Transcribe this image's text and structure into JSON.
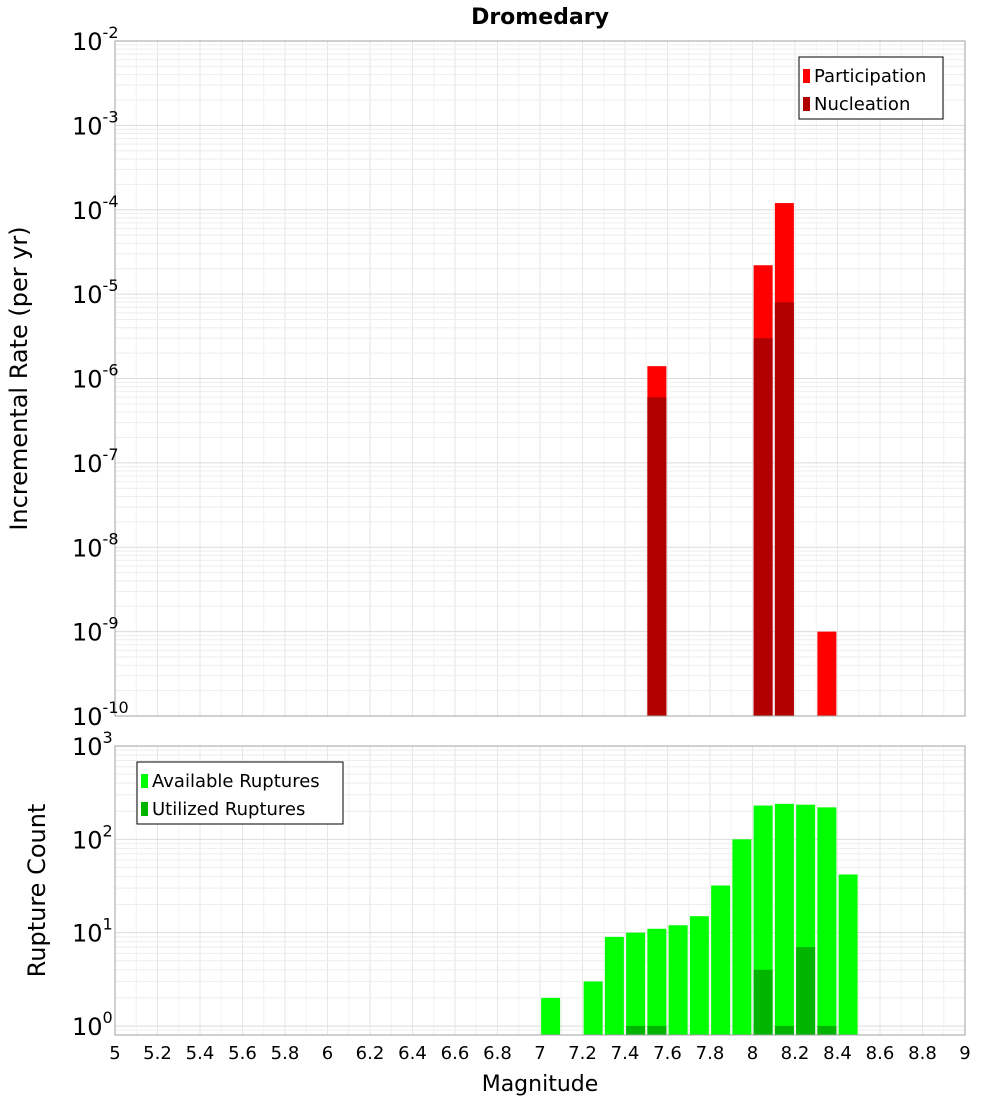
{
  "chart_data": [
    {
      "type": "bar",
      "title": "Dromedary",
      "xlabel": "",
      "ylabel": "Incremental Rate (per yr)",
      "yscale": "log",
      "ylim": [
        1e-10,
        0.01
      ],
      "xlim": [
        5,
        9
      ],
      "grid": true,
      "legend_position": "top-right",
      "y_ticks": [
        {
          "base": "10",
          "exp": "-10"
        },
        {
          "base": "10",
          "exp": "-9"
        },
        {
          "base": "10",
          "exp": "-8"
        },
        {
          "base": "10",
          "exp": "-7"
        },
        {
          "base": "10",
          "exp": "-6"
        },
        {
          "base": "10",
          "exp": "-5"
        },
        {
          "base": "10",
          "exp": "-4"
        },
        {
          "base": "10",
          "exp": "-3"
        },
        {
          "base": "10",
          "exp": "-2"
        }
      ],
      "series": [
        {
          "name": "Participation",
          "color": "#ff0000",
          "x": [
            7.55,
            8.05,
            8.15,
            8.35
          ],
          "values": [
            1.4e-06,
            2.2e-05,
            0.00012,
            1e-09
          ]
        },
        {
          "name": "Nucleation",
          "color": "#b00000",
          "x": [
            7.55,
            8.05,
            8.15
          ],
          "values": [
            6e-07,
            3e-06,
            8e-06
          ]
        }
      ]
    },
    {
      "type": "bar",
      "title": "",
      "xlabel": "Magnitude",
      "ylabel": "Rupture Count",
      "yscale": "log",
      "ylim": [
        0.8,
        1000
      ],
      "xlim": [
        5,
        9
      ],
      "grid": true,
      "legend_position": "top-left",
      "x_ticks": [
        "5",
        "5.2",
        "5.4",
        "5.6",
        "5.8",
        "6",
        "6.2",
        "6.4",
        "6.6",
        "6.8",
        "7",
        "7.2",
        "7.4",
        "7.6",
        "7.8",
        "8",
        "8.2",
        "8.4",
        "8.6",
        "8.8",
        "9"
      ],
      "y_ticks": [
        {
          "base": "10",
          "exp": "0"
        },
        {
          "base": "10",
          "exp": "1"
        },
        {
          "base": "10",
          "exp": "2"
        },
        {
          "base": "10",
          "exp": "3"
        }
      ],
      "series": [
        {
          "name": "Available Ruptures",
          "color": "#00ff00",
          "x": [
            7.05,
            7.25,
            7.35,
            7.45,
            7.55,
            7.65,
            7.75,
            7.85,
            7.95,
            8.05,
            8.15,
            8.25,
            8.35,
            8.45
          ],
          "values": [
            2,
            3,
            9,
            10,
            11,
            12,
            15,
            32,
            100,
            230,
            240,
            235,
            220,
            42
          ]
        },
        {
          "name": "Utilized Ruptures",
          "color": "#00b400",
          "x": [
            7.45,
            7.55,
            8.05,
            8.15,
            8.25,
            8.35
          ],
          "values": [
            1,
            1,
            4,
            1,
            7,
            1
          ]
        }
      ]
    }
  ]
}
